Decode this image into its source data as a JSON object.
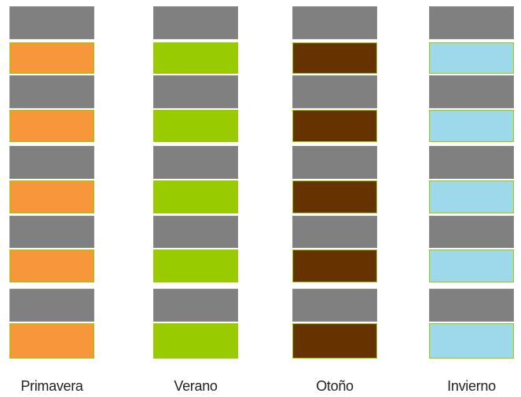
{
  "colors": {
    "gray_band": "#808080",
    "border_accent": "#99cc00"
  },
  "seasons": [
    {
      "label": "Primavera",
      "color": "#f7963a",
      "color_name": "orange"
    },
    {
      "label": "Verano",
      "color": "#99cc00",
      "color_name": "lime-green"
    },
    {
      "label": "Otoño",
      "color": "#663300",
      "color_name": "dark-brown"
    },
    {
      "label": "Invierno",
      "color": "#9dd9ea",
      "color_name": "light-blue"
    }
  ]
}
